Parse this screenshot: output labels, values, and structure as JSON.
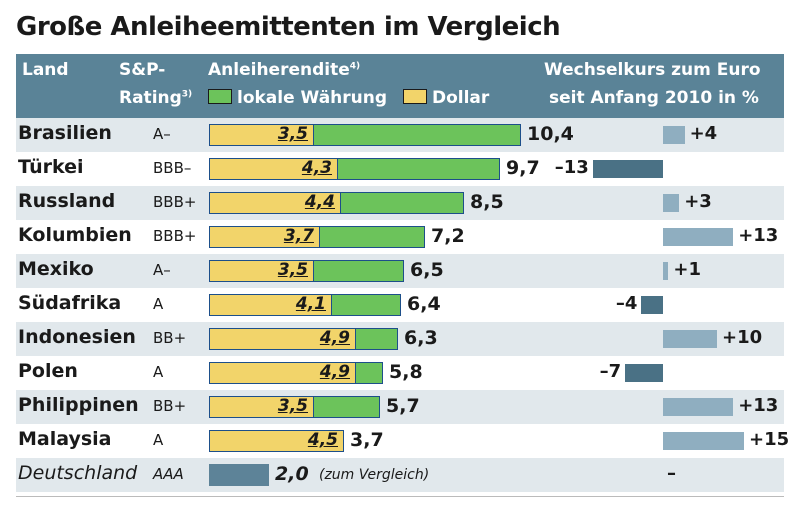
{
  "title": "Große Anleiheemittenten im Vergleich",
  "header": {
    "land": "Land",
    "rating_line1": "S&P-",
    "rating_line2": "Rating",
    "rating_sup": "3)",
    "yield": "Anleiherendite",
    "yield_sup": "4)",
    "legend_local": "lokale Währung",
    "legend_dollar": "Dollar",
    "fx_line1": "Wechselkurs zum Euro",
    "fx_line2": "seit Anfang 2010 in %"
  },
  "colors": {
    "header_bg": "#5a8397",
    "local_currency": "#6cc35b",
    "dollar": "#f2d46a",
    "fx_positive": "#8faec0",
    "fx_negative": "#4a7185",
    "row_shade": "#e1e8ec"
  },
  "chart_data": {
    "type": "bar",
    "title": "Große Anleiheemittenten im Vergleich",
    "columns": [
      "Land",
      "S&P-Rating",
      "Anleiherendite",
      "Wechselkurs zum Euro seit Anfang 2010 in %"
    ],
    "categories": [
      "Brasilien",
      "Türkei",
      "Russland",
      "Kolumbien",
      "Mexiko",
      "Südafrika",
      "Indonesien",
      "Polen",
      "Philippinen",
      "Malaysia"
    ],
    "ratings": [
      "A–",
      "BBB–",
      "BBB+",
      "BBB+",
      "A–",
      "A",
      "BB+",
      "A",
      "BB+",
      "A"
    ],
    "series": [
      {
        "name": "lokale Währung",
        "values": [
          10.4,
          9.7,
          8.5,
          7.2,
          6.5,
          6.4,
          6.3,
          5.8,
          5.7,
          3.7
        ]
      },
      {
        "name": "Dollar",
        "values": [
          3.5,
          4.3,
          4.4,
          3.7,
          3.5,
          4.1,
          4.9,
          4.9,
          3.5,
          4.5
        ]
      }
    ],
    "fx_change": {
      "values": [
        4,
        -13,
        3,
        13,
        1,
        -4,
        10,
        -7,
        13,
        15
      ],
      "labels": [
        "+4",
        "–13",
        "+3",
        "+13",
        "+1",
        "–4",
        "+10",
        "–7",
        "+13",
        "+15"
      ]
    },
    "local_labels": [
      "10,4",
      "9,7",
      "8,5",
      "7,2",
      "6,5",
      "6,4",
      "6,3",
      "5,8",
      "5,7",
      "3,7"
    ],
    "dollar_labels": [
      "3,5",
      "4,3",
      "4,4",
      "3,7",
      "3,5",
      "4,1",
      "4,9",
      "4,9",
      "3,5",
      "4,5"
    ],
    "comparison": {
      "country": "Deutschland",
      "rating": "AAA",
      "value": 2.0,
      "label": "2,0",
      "note": "(zum Vergleich)",
      "fx_label": "–"
    }
  }
}
